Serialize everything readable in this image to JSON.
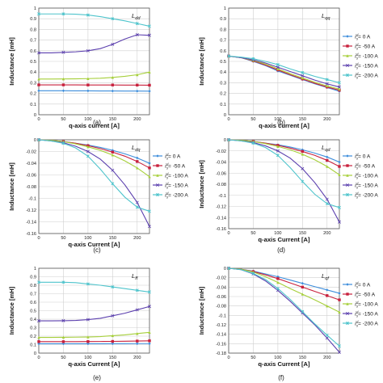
{
  "colors": {
    "0 A": "#3d8ddb",
    "-50 A": "#c8203c",
    "-100 A": "#a6cf3a",
    "-150 A": "#5b3fae",
    "-200 A": "#4ec4cc"
  },
  "legend": {
    "symbol": "i",
    "superscript": "d",
    "subscript": "s",
    "entries": [
      "= 0 A",
      "= -50 A",
      "= -100 A",
      "= -150 A",
      "= -200 A"
    ]
  },
  "chart_data": [
    {
      "type": "line",
      "panel": "(a)",
      "corner_label": "L",
      "corner_sub": "dd",
      "xlabel": "q-axis current [A]",
      "ylabel": "Inductance [mH]",
      "xlim": [
        0,
        225
      ],
      "ylim": [
        0,
        1
      ],
      "xticks": [
        "0",
        "50",
        "100",
        "150",
        "200"
      ],
      "yticks": [
        "0",
        "0.1",
        "0.2",
        "0.3",
        "0.4",
        "0.5",
        "0.6",
        "0.7",
        "0.8",
        "0.9",
        "1"
      ],
      "legend": false,
      "x": [
        0,
        25,
        50,
        75,
        100,
        125,
        150,
        175,
        200,
        225
      ],
      "series": [
        {
          "name": "0 A",
          "values": [
            0.225,
            0.225,
            0.225,
            0.224,
            0.224,
            0.223,
            0.223,
            0.222,
            0.222,
            0.221
          ]
        },
        {
          "name": "-50 A",
          "values": [
            0.28,
            0.28,
            0.28,
            0.28,
            0.279,
            0.279,
            0.279,
            0.278,
            0.278,
            0.277
          ]
        },
        {
          "name": "-100 A",
          "values": [
            0.335,
            0.335,
            0.336,
            0.337,
            0.339,
            0.342,
            0.35,
            0.36,
            0.375,
            0.4
          ]
        },
        {
          "name": "-150 A",
          "values": [
            0.58,
            0.58,
            0.585,
            0.59,
            0.6,
            0.62,
            0.66,
            0.71,
            0.75,
            0.745
          ]
        },
        {
          "name": "-200 A",
          "values": [
            0.945,
            0.945,
            0.945,
            0.943,
            0.935,
            0.92,
            0.9,
            0.88,
            0.855,
            0.83
          ]
        }
      ]
    },
    {
      "type": "line",
      "panel": "(b)",
      "corner_label": "L",
      "corner_sub": "qq",
      "xlabel": "q-axis current [A]",
      "ylabel": "Inductance [mH]",
      "xlim": [
        0,
        225
      ],
      "ylim": [
        0,
        1
      ],
      "xticks": [
        "0",
        "50",
        "100",
        "150",
        "200"
      ],
      "yticks": [
        "0",
        "0.1",
        "0.2",
        "0.3",
        "0.4",
        "0.5",
        "0.6",
        "0.7",
        "0.8",
        "0.9",
        "1"
      ],
      "legend": true,
      "x": [
        0,
        25,
        50,
        75,
        100,
        125,
        150,
        175,
        200,
        225
      ],
      "series": [
        {
          "name": "0 A",
          "values": [
            0.55,
            0.535,
            0.5,
            0.46,
            0.41,
            0.37,
            0.33,
            0.29,
            0.255,
            0.22
          ]
        },
        {
          "name": "-50 A",
          "values": [
            0.55,
            0.535,
            0.505,
            0.465,
            0.42,
            0.375,
            0.335,
            0.295,
            0.26,
            0.23
          ]
        },
        {
          "name": "-100 A",
          "values": [
            0.55,
            0.535,
            0.51,
            0.475,
            0.43,
            0.385,
            0.345,
            0.305,
            0.27,
            0.24
          ]
        },
        {
          "name": "-150 A",
          "values": [
            0.55,
            0.535,
            0.515,
            0.485,
            0.445,
            0.405,
            0.365,
            0.325,
            0.29,
            0.26
          ]
        },
        {
          "name": "-200 A",
          "values": [
            0.55,
            0.54,
            0.525,
            0.5,
            0.47,
            0.43,
            0.395,
            0.36,
            0.33,
            0.3
          ]
        }
      ]
    },
    {
      "type": "line",
      "panel": "(c)",
      "corner_label": "L",
      "corner_sub": "dq",
      "xlabel": "q-axis Current [A]",
      "ylabel": "Inductance [mH]",
      "xlim": [
        0,
        225
      ],
      "ylim": [
        -0.16,
        0
      ],
      "xticks": [
        "0",
        "50",
        "100",
        "150",
        "200"
      ],
      "yticks": [
        "-0.16",
        "-0.14",
        "-0.12",
        "-0.1",
        "-0.08",
        "-0.06",
        "-0.04",
        "-0.02",
        "0"
      ],
      "legend": true,
      "x": [
        0,
        25,
        50,
        75,
        100,
        125,
        150,
        175,
        200,
        225
      ],
      "series": [
        {
          "name": "0 A",
          "values": [
            0,
            -0.001,
            -0.003,
            -0.006,
            -0.009,
            -0.013,
            -0.018,
            -0.024,
            -0.031,
            -0.04
          ]
        },
        {
          "name": "-50 A",
          "values": [
            0,
            -0.001,
            -0.003,
            -0.006,
            -0.01,
            -0.015,
            -0.021,
            -0.028,
            -0.037,
            -0.048
          ]
        },
        {
          "name": "-100 A",
          "values": [
            0,
            -0.001,
            -0.003,
            -0.007,
            -0.012,
            -0.018,
            -0.026,
            -0.036,
            -0.048,
            -0.063
          ]
        },
        {
          "name": "-150 A",
          "values": [
            0,
            -0.002,
            -0.005,
            -0.011,
            -0.02,
            -0.033,
            -0.052,
            -0.077,
            -0.107,
            -0.148
          ]
        },
        {
          "name": "-200 A",
          "values": [
            0,
            -0.002,
            -0.006,
            -0.014,
            -0.028,
            -0.05,
            -0.075,
            -0.098,
            -0.115,
            -0.122
          ]
        }
      ]
    },
    {
      "type": "line",
      "panel": "(d)",
      "corner_label": "L",
      "corner_sub": "qd",
      "xlabel": "q-axis Current [A]",
      "ylabel": "Inductance [mH]",
      "xlim": [
        0,
        225
      ],
      "ylim": [
        -0.16,
        0
      ],
      "xticks": [
        "0",
        "50",
        "100",
        "150",
        "200"
      ],
      "yticks": [
        "-0.16",
        "-0.14",
        "-0.12",
        "-0.1",
        "-0.08",
        "-0.06",
        "-0.04",
        "-0.02",
        "0"
      ],
      "legend": true,
      "x": [
        0,
        25,
        50,
        75,
        100,
        125,
        150,
        175,
        200,
        225
      ],
      "series": [
        {
          "name": "0 A",
          "values": [
            0,
            -0.001,
            -0.003,
            -0.006,
            -0.009,
            -0.013,
            -0.018,
            -0.024,
            -0.031,
            -0.04
          ]
        },
        {
          "name": "-50 A",
          "values": [
            0,
            -0.001,
            -0.003,
            -0.006,
            -0.01,
            -0.015,
            -0.021,
            -0.028,
            -0.037,
            -0.048
          ]
        },
        {
          "name": "-100 A",
          "values": [
            0,
            -0.001,
            -0.003,
            -0.007,
            -0.012,
            -0.018,
            -0.026,
            -0.036,
            -0.048,
            -0.063
          ]
        },
        {
          "name": "-150 A",
          "values": [
            0,
            -0.002,
            -0.005,
            -0.011,
            -0.02,
            -0.033,
            -0.052,
            -0.077,
            -0.107,
            -0.148
          ]
        },
        {
          "name": "-200 A",
          "values": [
            0,
            -0.002,
            -0.006,
            -0.014,
            -0.028,
            -0.05,
            -0.075,
            -0.098,
            -0.115,
            -0.122
          ]
        }
      ]
    },
    {
      "type": "line",
      "panel": "(e)",
      "corner_label": "L",
      "corner_sub": "ff",
      "xlabel": "q-axis Current [A]",
      "ylabel": "Inductance [mH]",
      "xlim": [
        0,
        225
      ],
      "ylim": [
        0,
        1
      ],
      "xticks": [
        "0",
        "50",
        "100",
        "150",
        "200"
      ],
      "yticks": [
        "0",
        "0.1",
        "0.2",
        "0.3",
        "0.4",
        "0.5",
        "0.6",
        "0.7",
        "0.8",
        "0.9",
        "1"
      ],
      "legend": false,
      "x": [
        0,
        25,
        50,
        75,
        100,
        125,
        150,
        175,
        200,
        225
      ],
      "series": [
        {
          "name": "0 A",
          "values": [
            0.11,
            0.11,
            0.11,
            0.11,
            0.11,
            0.11,
            0.111,
            0.111,
            0.112,
            0.112
          ]
        },
        {
          "name": "-50 A",
          "values": [
            0.135,
            0.135,
            0.135,
            0.135,
            0.136,
            0.137,
            0.138,
            0.14,
            0.142,
            0.145
          ]
        },
        {
          "name": "-100 A",
          "values": [
            0.185,
            0.185,
            0.186,
            0.188,
            0.19,
            0.195,
            0.205,
            0.215,
            0.23,
            0.245
          ]
        },
        {
          "name": "-150 A",
          "values": [
            0.38,
            0.38,
            0.382,
            0.385,
            0.395,
            0.41,
            0.44,
            0.47,
            0.51,
            0.55
          ]
        },
        {
          "name": "-200 A",
          "values": [
            0.835,
            0.835,
            0.835,
            0.83,
            0.815,
            0.8,
            0.78,
            0.76,
            0.74,
            0.72
          ]
        }
      ]
    },
    {
      "type": "line",
      "panel": "(f)",
      "corner_label": "L",
      "corner_sub": "qf",
      "xlabel": "q-axis Current [A]",
      "ylabel": "Inductance [mH]",
      "xlim": [
        0,
        225
      ],
      "ylim": [
        -0.18,
        0
      ],
      "xticks": [
        "0",
        "50",
        "100",
        "150",
        "200"
      ],
      "yticks": [
        "-0.18",
        "-0.16",
        "-0.14",
        "-0.12",
        "-0.1",
        "-0.08",
        "-0.06",
        "-0.04",
        "-0.02",
        "0"
      ],
      "legend": true,
      "x": [
        0,
        25,
        50,
        75,
        100,
        125,
        150,
        175,
        200,
        225
      ],
      "series": [
        {
          "name": "0 A",
          "values": [
            0,
            -0.002,
            -0.006,
            -0.012,
            -0.018,
            -0.025,
            -0.032,
            -0.039,
            -0.046,
            -0.053
          ]
        },
        {
          "name": "-50 A",
          "values": [
            0,
            -0.002,
            -0.007,
            -0.014,
            -0.022,
            -0.031,
            -0.04,
            -0.049,
            -0.058,
            -0.067
          ]
        },
        {
          "name": "-100 A",
          "values": [
            0,
            -0.002,
            -0.008,
            -0.018,
            -0.03,
            -0.043,
            -0.055,
            -0.067,
            -0.08,
            -0.093
          ]
        },
        {
          "name": "-150 A",
          "values": [
            0,
            -0.003,
            -0.012,
            -0.027,
            -0.047,
            -0.07,
            -0.095,
            -0.12,
            -0.148,
            -0.178
          ]
        },
        {
          "name": "-200 A",
          "values": [
            0,
            -0.003,
            -0.011,
            -0.024,
            -0.043,
            -0.066,
            -0.092,
            -0.118,
            -0.142,
            -0.165
          ]
        }
      ]
    }
  ]
}
